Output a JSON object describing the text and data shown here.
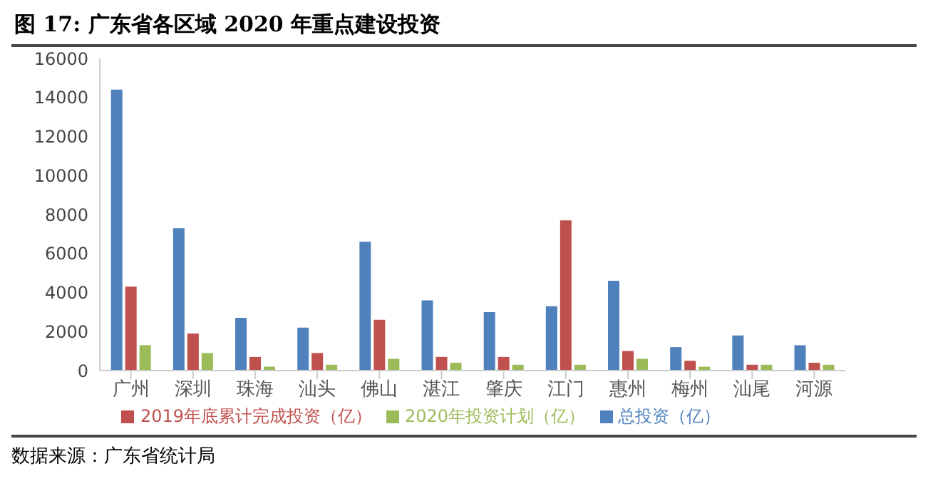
{
  "chart_data": {
    "type": "bar",
    "title": "图  17:  广东省各区域 2020 年重点建设投资",
    "categories": [
      "广州",
      "深圳",
      "珠海",
      "汕头",
      "佛山",
      "湛江",
      "肇庆",
      "江门",
      "惠州",
      "梅州",
      "汕尾",
      "河源"
    ],
    "series": [
      {
        "name": "总投资（亿）",
        "color": "#4f81bd",
        "values": [
          14400,
          7300,
          2700,
          2200,
          6600,
          3600,
          3000,
          3300,
          4600,
          1200,
          1800,
          1300
        ]
      },
      {
        "name": "2019年底累计完成投资（亿）",
        "color": "#c0504d",
        "values": [
          4300,
          1900,
          700,
          900,
          2600,
          700,
          700,
          7700,
          1000,
          500,
          300,
          400
        ]
      },
      {
        "name": "2020年投资计划（亿）",
        "color": "#9bbb59",
        "values": [
          1300,
          900,
          200,
          300,
          600,
          400,
          300,
          300,
          600,
          200,
          300,
          300
        ]
      }
    ],
    "ylim": [
      0,
      16000
    ],
    "yticks": [
      0,
      2000,
      4000,
      6000,
      8000,
      10000,
      12000,
      14000,
      16000
    ],
    "grid": false,
    "legend": "bottom",
    "annotations": [
      "数据来源：广东省统计局"
    ]
  }
}
